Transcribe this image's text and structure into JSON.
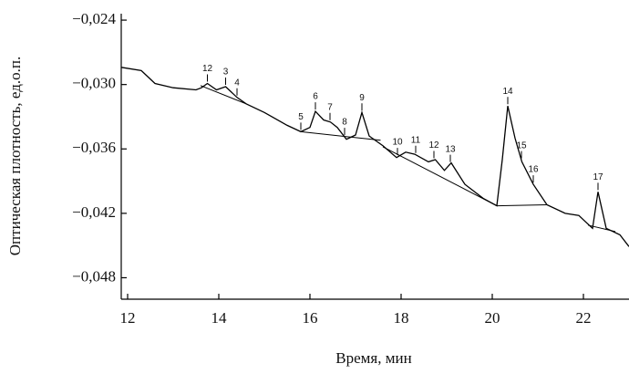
{
  "chart_data": {
    "type": "line",
    "x_label": "Время, мин",
    "y_label": "Оптическая плотность, ед.о.п.",
    "xlim": [
      11.86,
      23
    ],
    "ylim": [
      -0.05,
      -0.0234
    ],
    "xticks": [
      12,
      14,
      16,
      18,
      20,
      22
    ],
    "yticks": [
      {
        "value": -0.024,
        "label": "−0,024"
      },
      {
        "value": -0.03,
        "label": "−0,030"
      },
      {
        "value": -0.036,
        "label": "−0,036"
      },
      {
        "value": -0.042,
        "label": "−0,042"
      },
      {
        "value": -0.048,
        "label": "−0,048"
      }
    ],
    "series": [
      {
        "color": "#000000",
        "x": [
          11.86,
          12.3,
          12.6,
          13.0,
          13.5,
          13.62,
          13.75,
          13.95,
          14.15,
          14.4,
          14.6,
          15.0,
          15.5,
          15.8,
          16.0,
          16.12,
          16.3,
          16.45,
          16.6,
          16.8,
          17.0,
          17.14,
          17.3,
          17.6,
          17.9,
          18.1,
          18.3,
          18.6,
          18.75,
          18.95,
          19.1,
          19.4,
          19.8,
          20.1,
          20.22,
          20.34,
          20.5,
          20.65,
          20.9,
          21.2,
          21.6,
          21.9,
          22.05,
          22.2,
          22.32,
          22.5,
          22.8,
          23.0
        ],
        "values": [
          -0.0284,
          -0.0287,
          -0.0299,
          -0.0303,
          -0.0305,
          -0.0303,
          -0.0299,
          -0.0305,
          -0.0302,
          -0.0312,
          -0.0318,
          -0.0326,
          -0.0338,
          -0.0344,
          -0.034,
          -0.0325,
          -0.0333,
          -0.0335,
          -0.034,
          -0.0351,
          -0.0347,
          -0.0326,
          -0.0348,
          -0.0357,
          -0.0368,
          -0.0363,
          -0.0365,
          -0.0372,
          -0.037,
          -0.038,
          -0.0373,
          -0.0393,
          -0.0406,
          -0.0413,
          -0.037,
          -0.032,
          -0.035,
          -0.0372,
          -0.0393,
          -0.0412,
          -0.042,
          -0.0422,
          -0.0428,
          -0.0434,
          -0.04,
          -0.0434,
          -0.044,
          -0.0451
        ]
      }
    ],
    "baselines": [
      {
        "x": [
          13.6,
          14.6
        ],
        "values": [
          -0.0301,
          -0.0318
        ]
      },
      {
        "x": [
          15.8,
          17.55
        ],
        "values": [
          -0.0344,
          -0.0352
        ]
      },
      {
        "x": [
          17.6,
          20.1
        ],
        "values": [
          -0.0358,
          -0.0413
        ]
      },
      {
        "x": [
          20.1,
          21.2
        ],
        "values": [
          -0.0413,
          -0.0412
        ]
      },
      {
        "x": [
          22.1,
          22.7
        ],
        "values": [
          -0.0431,
          -0.0437
        ]
      }
    ],
    "peak_labels": [
      {
        "label": "12",
        "x": 13.75
      },
      {
        "label": "3",
        "x": 14.15
      },
      {
        "label": "4",
        "x": 14.4
      },
      {
        "label": "5",
        "x": 15.8
      },
      {
        "label": "6",
        "x": 16.12
      },
      {
        "label": "7",
        "x": 16.44
      },
      {
        "label": "8",
        "x": 16.76
      },
      {
        "label": "9",
        "x": 17.14
      },
      {
        "label": "10",
        "x": 17.92
      },
      {
        "label": "11",
        "x": 18.32
      },
      {
        "label": "12",
        "x": 18.72
      },
      {
        "label": "13",
        "x": 19.08
      },
      {
        "label": "14",
        "x": 20.34
      },
      {
        "label": "15",
        "x": 20.64
      },
      {
        "label": "16",
        "x": 20.9
      },
      {
        "label": "17",
        "x": 22.32
      }
    ]
  }
}
